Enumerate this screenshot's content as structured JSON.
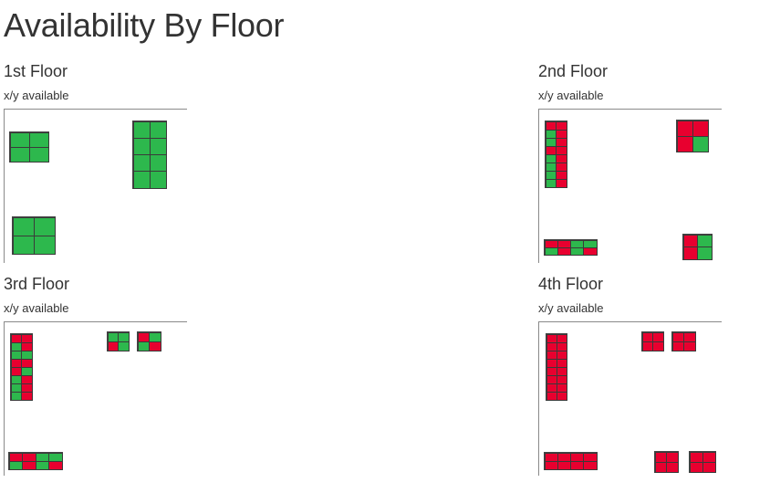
{
  "page": {
    "title": "Availability By Floor"
  },
  "colors": {
    "available": "#2db84d",
    "occupied": "#e8002f"
  },
  "floors": [
    {
      "title": "1st Floor",
      "subtitle": "x/y available",
      "blocks": [
        {
          "cols": 2,
          "rows": 2,
          "cells": [
            "a",
            "a",
            "a",
            "a"
          ]
        },
        {
          "cols": 2,
          "rows": 4,
          "cells": [
            "a",
            "a",
            "a",
            "a",
            "a",
            "a",
            "a",
            "a"
          ]
        },
        {
          "cols": 2,
          "rows": 2,
          "cells": [
            "a",
            "a",
            "a",
            "a"
          ]
        }
      ]
    },
    {
      "title": "2nd Floor",
      "subtitle": "x/y available",
      "blocks": [
        {
          "cols": 2,
          "rows": 8,
          "cells": [
            "o",
            "o",
            "a",
            "o",
            "a",
            "o",
            "o",
            "o",
            "a",
            "o",
            "a",
            "o",
            "a",
            "o",
            "a",
            "o"
          ]
        },
        {
          "cols": 2,
          "rows": 2,
          "cells": [
            "o",
            "o",
            "o",
            "a"
          ]
        },
        {
          "cols": 4,
          "rows": 2,
          "cells": [
            "o",
            "o",
            "a",
            "a",
            "a",
            "o",
            "a",
            "o"
          ]
        },
        {
          "cols": 2,
          "rows": 2,
          "cells": [
            "o",
            "a",
            "o",
            "a"
          ]
        }
      ]
    },
    {
      "title": "3rd Floor",
      "subtitle": "x/y available",
      "blocks": [
        {
          "cols": 2,
          "rows": 8,
          "cells": [
            "o",
            "o",
            "a",
            "o",
            "a",
            "a",
            "o",
            "o",
            "o",
            "a",
            "a",
            "o",
            "a",
            "o",
            "a",
            "o"
          ]
        },
        {
          "cols": 2,
          "rows": 2,
          "cells": [
            "a",
            "a",
            "o",
            "a"
          ]
        },
        {
          "cols": 2,
          "rows": 2,
          "cells": [
            "o",
            "a",
            "a",
            "o"
          ]
        },
        {
          "cols": 4,
          "rows": 2,
          "cells": [
            "o",
            "o",
            "a",
            "a",
            "a",
            "o",
            "a",
            "o"
          ]
        }
      ]
    },
    {
      "title": "4th Floor",
      "subtitle": "x/y available",
      "blocks": [
        {
          "cols": 2,
          "rows": 8,
          "cells": [
            "o",
            "o",
            "o",
            "o",
            "o",
            "o",
            "o",
            "o",
            "o",
            "o",
            "o",
            "o",
            "o",
            "o",
            "o",
            "o"
          ]
        },
        {
          "cols": 2,
          "rows": 2,
          "cells": [
            "o",
            "o",
            "o",
            "o"
          ]
        },
        {
          "cols": 2,
          "rows": 2,
          "cells": [
            "o",
            "o",
            "o",
            "o"
          ]
        },
        {
          "cols": 4,
          "rows": 2,
          "cells": [
            "o",
            "o",
            "o",
            "o",
            "o",
            "o",
            "o",
            "o"
          ]
        },
        {
          "cols": 2,
          "rows": 2,
          "cells": [
            "o",
            "o",
            "o",
            "o"
          ]
        },
        {
          "cols": 2,
          "rows": 2,
          "cells": [
            "o",
            "o",
            "o",
            "o"
          ]
        }
      ]
    }
  ]
}
